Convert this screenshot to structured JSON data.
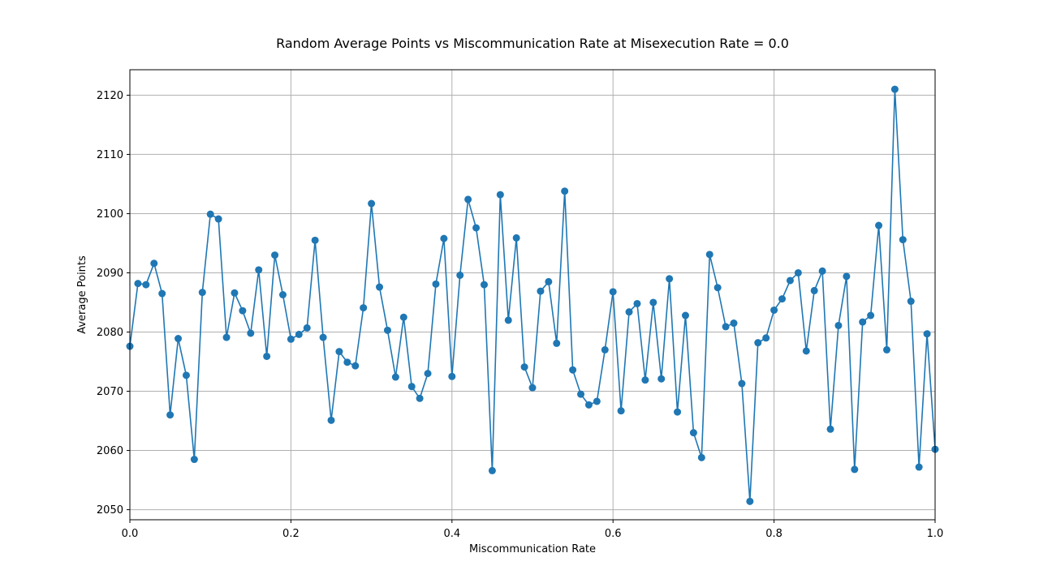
{
  "chart_data": {
    "type": "line",
    "title": "Random Average Points vs Miscommunication Rate at Misexecution Rate = 0.0",
    "xlabel": "Miscommunication Rate",
    "ylabel": "Average Points",
    "xlim": [
      0.0,
      1.0
    ],
    "ylim": [
      2048.3,
      2124.3
    ],
    "xticks": [
      0.0,
      0.2,
      0.4,
      0.6,
      0.8,
      1.0
    ],
    "xtick_labels": [
      "0.0",
      "0.2",
      "0.4",
      "0.6",
      "0.8",
      "1.0"
    ],
    "yticks": [
      2050,
      2060,
      2070,
      2080,
      2090,
      2100,
      2110,
      2120
    ],
    "ytick_labels": [
      "2050",
      "2060",
      "2070",
      "2080",
      "2090",
      "2100",
      "2110",
      "2120"
    ],
    "grid": true,
    "color": "#1f77b4",
    "series": [
      {
        "x": [
          0.0,
          0.01,
          0.02,
          0.03,
          0.04,
          0.05,
          0.06,
          0.07,
          0.08,
          0.09,
          0.1,
          0.11,
          0.12,
          0.13,
          0.14,
          0.15,
          0.16,
          0.17,
          0.18,
          0.19,
          0.2,
          0.21,
          0.22,
          0.23,
          0.24,
          0.25,
          0.26,
          0.27,
          0.28,
          0.29,
          0.3,
          0.31,
          0.32,
          0.33,
          0.34,
          0.35,
          0.36,
          0.37,
          0.38,
          0.39,
          0.4,
          0.41,
          0.42,
          0.43,
          0.44,
          0.45,
          0.46,
          0.47,
          0.48,
          0.49,
          0.5,
          0.51,
          0.52,
          0.53,
          0.54,
          0.55,
          0.56,
          0.57,
          0.58,
          0.59,
          0.6,
          0.61,
          0.62,
          0.63,
          0.64,
          0.65,
          0.66,
          0.67,
          0.68,
          0.69,
          0.7,
          0.71,
          0.72,
          0.73,
          0.74,
          0.75,
          0.76,
          0.77,
          0.78,
          0.79,
          0.8,
          0.81,
          0.82,
          0.83,
          0.84,
          0.85,
          0.86,
          0.87,
          0.88,
          0.89,
          0.9,
          0.91,
          0.92,
          0.93,
          0.94,
          0.95,
          0.96,
          0.97,
          0.98,
          0.99,
          1.0
        ],
        "values": [
          2077.6,
          2088.2,
          2088.0,
          2091.6,
          2086.5,
          2066.0,
          2078.9,
          2072.7,
          2058.5,
          2086.7,
          2099.9,
          2099.1,
          2079.1,
          2086.6,
          2083.6,
          2079.8,
          2090.5,
          2075.9,
          2093.0,
          2086.3,
          2078.8,
          2079.6,
          2080.7,
          2095.5,
          2079.1,
          2065.1,
          2076.7,
          2074.9,
          2074.3,
          2084.1,
          2101.7,
          2087.6,
          2080.3,
          2072.4,
          2082.5,
          2070.8,
          2068.8,
          2073.0,
          2088.1,
          2095.8,
          2072.5,
          2089.6,
          2102.4,
          2097.6,
          2088.0,
          2056.6,
          2103.2,
          2082.0,
          2095.9,
          2074.1,
          2070.6,
          2086.9,
          2088.5,
          2078.1,
          2103.8,
          2073.6,
          2069.5,
          2067.7,
          2068.3,
          2077.0,
          2086.8,
          2066.7,
          2083.4,
          2084.8,
          2071.9,
          2085.0,
          2072.1,
          2089.0,
          2066.5,
          2082.8,
          2063.0,
          2058.8,
          2093.1,
          2087.5,
          2080.9,
          2081.5,
          2071.3,
          2051.4,
          2078.2,
          2079.0,
          2083.7,
          2085.6,
          2088.7,
          2090.0,
          2076.8,
          2087.0,
          2090.3,
          2063.6,
          2081.1,
          2089.4,
          2056.8,
          2081.7,
          2082.8,
          2098.0,
          2077.0,
          2121.0,
          2095.6,
          2085.2,
          2057.2,
          2079.7,
          2060.2
        ]
      }
    ]
  }
}
